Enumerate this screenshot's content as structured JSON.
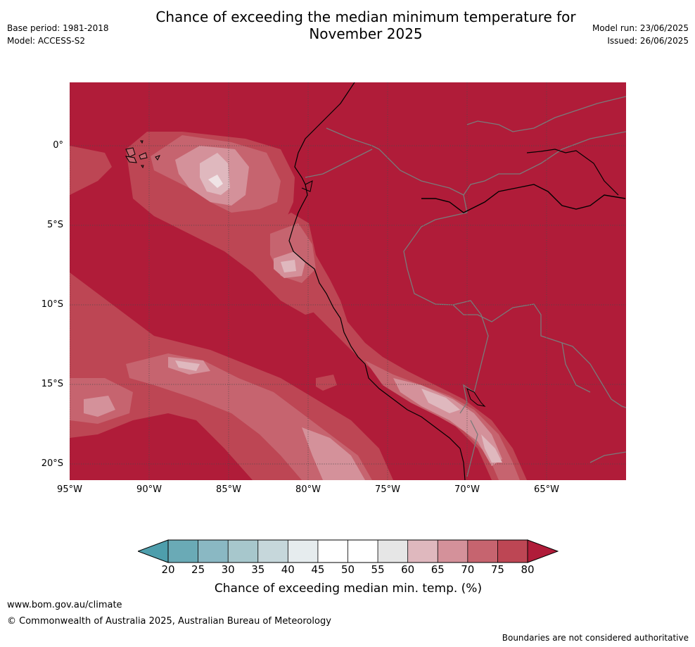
{
  "title": {
    "line1": "Chance of exceeding the median minimum temperature for",
    "line2": "November 2025"
  },
  "meta": {
    "base_period": "Base period: 1981-2018",
    "model": "Model: ACCESS-S2",
    "model_run": "Model run: 23/06/2025",
    "issued": "Issued: 26/06/2025"
  },
  "map": {
    "region": "Northern South America and eastern Pacific",
    "lat_labels": [
      "0°",
      "5°S",
      "10°S",
      "15°S",
      "20°S"
    ],
    "lon_labels": [
      "95°W",
      "90°W",
      "85°W",
      "80°W",
      "75°W",
      "70°W",
      "65°W"
    ],
    "colors": {
      "c60_65": "#dfb8be",
      "c65_70": "#d4919a",
      "c70_75": "#c6646f",
      "c75_80": "#bd4654",
      "c80plus": "#b01c39",
      "coast": "#000000",
      "border": "#7a7a7a",
      "grid": "#4a4a4a"
    }
  },
  "colorbar": {
    "ticks": [
      "20",
      "25",
      "30",
      "35",
      "40",
      "45",
      "50",
      "55",
      "60",
      "65",
      "70",
      "75",
      "80"
    ],
    "colors": [
      "#6aaab6",
      "#8ab8c3",
      "#a7c7cc",
      "#c6d7db",
      "#e6ecee",
      "#ffffff",
      "#ffffff",
      "#e6e6e6",
      "#dfb8be",
      "#d4919a",
      "#c6646f",
      "#bd4654"
    ],
    "under_color": "#4e9eac",
    "over_color": "#b01c39",
    "label": "Chance of exceeding median min. temp. (%)"
  },
  "footer": {
    "url": "www.bom.gov.au/climate",
    "copyright": "© Commonwealth of Australia 2025, Australian Bureau of Meteorology",
    "disclaimer": "Boundaries are not considered authoritative"
  }
}
